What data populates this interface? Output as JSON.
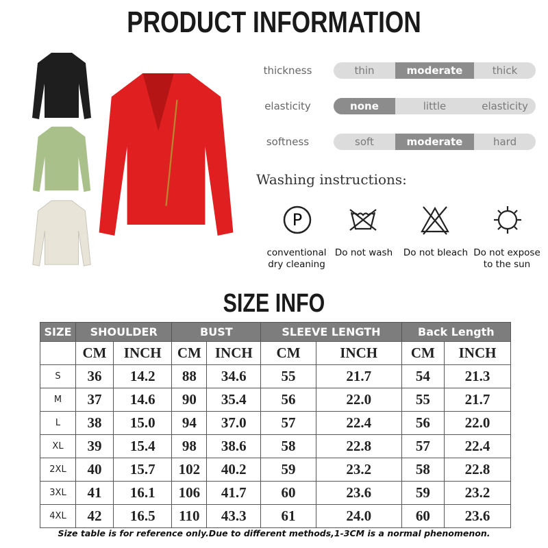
{
  "title": "PRODUCT INFORMATION",
  "attributes": [
    {
      "label": "thickness",
      "options": [
        "thin",
        "moderate",
        "thick"
      ],
      "selected": "moderate"
    },
    {
      "label": "elasticity",
      "options": [
        "none",
        "little",
        "elasticity"
      ],
      "selected": "none"
    },
    {
      "label": "softness",
      "options": [
        "soft",
        "moderate",
        "hard"
      ],
      "selected": "moderate"
    }
  ],
  "washing": {
    "title": "Washing instructions:",
    "items": [
      {
        "icon": "dry-clean-p-icon",
        "line1": "conventional",
        "line2": "dry cleaning"
      },
      {
        "icon": "do-not-wash-icon",
        "line1": "Do not wash",
        "line2": ""
      },
      {
        "icon": "do-not-bleach-icon",
        "line1": "Do not bleach",
        "line2": ""
      },
      {
        "icon": "do-not-sun-icon",
        "line1": "Do not expose",
        "line2": "to the sun"
      }
    ]
  },
  "jacket_colors": {
    "main": "#e02020",
    "black": "#1e1e1e",
    "green": "#a9c08a",
    "white": "#e8e4d8"
  },
  "size_title": "SIZE INFO",
  "table": {
    "headers": [
      "SIZE",
      "SHOULDER",
      "BUST",
      "SLEEVE LENGTH",
      "Back Length"
    ],
    "subheaders": [
      "CM",
      "INCH",
      "CM",
      "INCH",
      "CM",
      "INCH",
      "CM",
      "INCH"
    ],
    "rows": [
      [
        "S",
        "36",
        "14.2",
        "88",
        "34.6",
        "55",
        "21.7",
        "54",
        "21.3"
      ],
      [
        "M",
        "37",
        "14.6",
        "90",
        "35.4",
        "56",
        "22.0",
        "55",
        "21.7"
      ],
      [
        "L",
        "38",
        "15.0",
        "94",
        "37.0",
        "57",
        "22.4",
        "56",
        "22.0"
      ],
      [
        "XL",
        "39",
        "15.4",
        "98",
        "38.6",
        "58",
        "22.8",
        "57",
        "22.4"
      ],
      [
        "2XL",
        "40",
        "15.7",
        "102",
        "40.2",
        "59",
        "23.2",
        "58",
        "22.8"
      ],
      [
        "3XL",
        "41",
        "16.1",
        "106",
        "41.7",
        "60",
        "23.6",
        "59",
        "23.2"
      ],
      [
        "4XL",
        "42",
        "16.5",
        "110",
        "43.3",
        "61",
        "24.0",
        "60",
        "23.6"
      ]
    ]
  },
  "note": "Size table is for reference only.Due to different methods,1-3CM is a normal phenomenon."
}
